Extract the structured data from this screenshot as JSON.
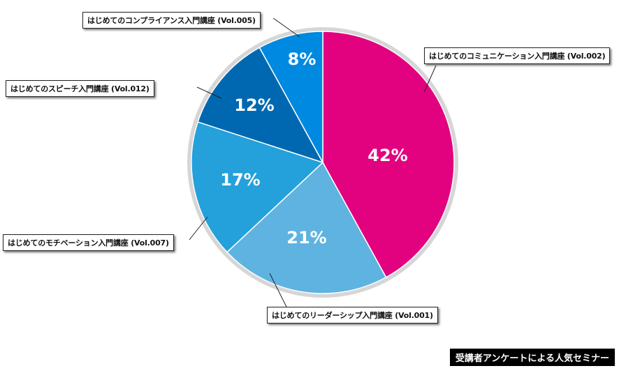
{
  "chart_data": {
    "type": "pie",
    "title": "",
    "caption": "受講者アンケートによる人気セミナー",
    "slices": [
      {
        "label": "はじめてのコミュニケーション入門講座 (Vol.002)",
        "value": 42,
        "display": "42%",
        "color": "#e2017f"
      },
      {
        "label": "はじめてのリーダーシップ入門講座 (Vol.001)",
        "value": 21,
        "display": "21%",
        "color": "#5fb3e1"
      },
      {
        "label": "はじめてのモチベーション入門講座 (Vol.007)",
        "value": 17,
        "display": "17%",
        "color": "#24a0da"
      },
      {
        "label": "はじめてのスピーチ入門講座 (Vol.012)",
        "value": 12,
        "display": "12%",
        "color": "#0068b0"
      },
      {
        "label": "はじめてのコンプライアンス入門講座 (Vol.005)",
        "value": 8,
        "display": "8%",
        "color": "#0089e0"
      }
    ]
  }
}
